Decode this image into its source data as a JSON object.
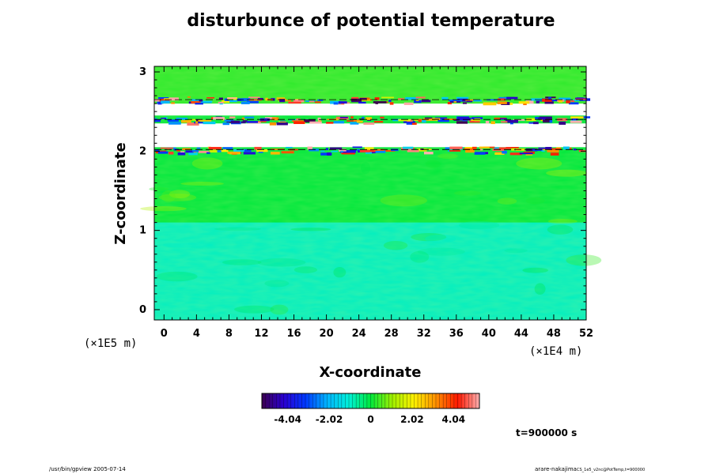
{
  "chart_data": {
    "type": "heatmap",
    "title": "disturbunce of potential temperature",
    "xlabel": "X-coordinate",
    "ylabel": "Z-coordinate",
    "x_unit": "(×1E4 m)",
    "y_unit": "(×1E5 m)",
    "xlim": [
      -1.2,
      52
    ],
    "ylim": [
      -0.13,
      3.07
    ],
    "x_ticks": [
      "0",
      "4",
      "8",
      "12",
      "16",
      "20",
      "24",
      "28",
      "32",
      "36",
      "40",
      "44",
      "48",
      "52"
    ],
    "y_ticks": [
      "0",
      "1",
      "2",
      "3"
    ],
    "time_label": "t=900000 s",
    "colorbar": {
      "min": -5.3,
      "max": 5.3,
      "tick_labels": [
        "-4.04",
        "-2.02",
        "0",
        "2.02",
        "4.04"
      ],
      "tick_values": [
        -4.04,
        -2.02,
        0,
        2.02,
        4.04
      ]
    },
    "field_description": {
      "lower_layer_z": [
        0,
        1.1
      ],
      "lower_layer_value": -0.9,
      "middle_layer_z": [
        1.1,
        2.0
      ],
      "middle_layer_value": 0,
      "white_gaps_z": [
        [
          2.05,
          2.35
        ],
        [
          2.45,
          2.6
        ]
      ],
      "top_layer_z": [
        2.6,
        3.07
      ],
      "top_layer_value": 0.3,
      "strong_anomaly_bands_z": [
        2.02,
        2.4,
        2.65
      ]
    }
  },
  "footer": {
    "left": "/usr/bin/gpview 2005-07-14",
    "right_main": "arare-nakajima",
    "right_sub": "CS_1e5_v2nc@PotTemp,t=900000"
  }
}
